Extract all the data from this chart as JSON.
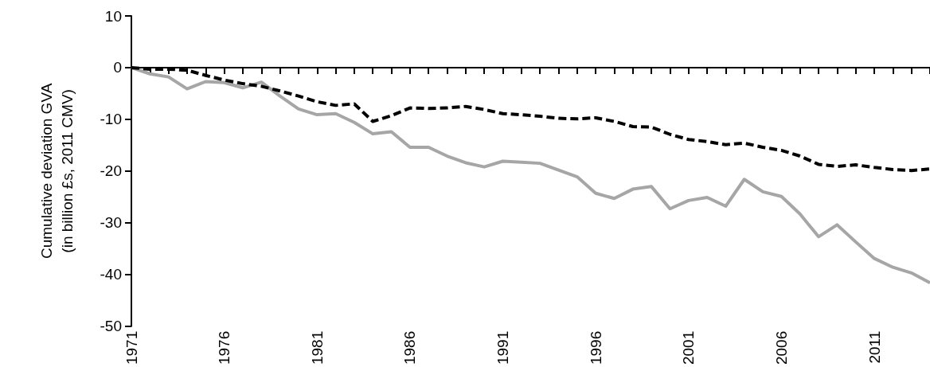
{
  "chart_data": {
    "type": "line",
    "ylabel": "Cumulative deviation GVA\n(in billion £s, 2011 CMV)",
    "categories": [
      "1971",
      null,
      null,
      null,
      null,
      "1976",
      null,
      null,
      null,
      null,
      "1981",
      null,
      null,
      null,
      null,
      "1986",
      null,
      null,
      null,
      null,
      "1991",
      null,
      null,
      null,
      null,
      "1996",
      null,
      null,
      null,
      null,
      "2001",
      null,
      null,
      null,
      null,
      "2006",
      null,
      null,
      null,
      null,
      "2011",
      null,
      null,
      null
    ],
    "series": [
      {
        "color": "#a6a6a6",
        "line_style": "solid",
        "values": [
          0,
          -1.2,
          -1.8,
          -4.1,
          -2.7,
          -2.9,
          -3.9,
          -2.8,
          -5.5,
          -8.0,
          -9.1,
          -8.9,
          -10.6,
          -12.8,
          -12.4,
          -15.4,
          -15.4,
          -17.1,
          -18.4,
          -19.2,
          -18.1,
          -18.3,
          -18.5,
          -19.8,
          -21.1,
          -24.3,
          -25.3,
          -23.5,
          -23.0,
          -27.3,
          -25.7,
          -25.1,
          -26.8,
          -21.6,
          -24.0,
          -24.9,
          -28.3,
          -32.7,
          -30.4,
          -33.7,
          -36.9,
          -38.6,
          -39.7,
          -41.6
        ]
      },
      {
        "color": "#000000",
        "line_style": "dashed",
        "values": [
          0,
          -0.3,
          -0.3,
          -0.5,
          -1.5,
          -2.4,
          -3.1,
          -3.6,
          -4.5,
          -5.5,
          -6.6,
          -7.3,
          -7.0,
          -10.4,
          -9.3,
          -7.8,
          -7.9,
          -7.8,
          -7.5,
          -8.1,
          -8.9,
          -9.1,
          -9.4,
          -9.8,
          -9.9,
          -9.7,
          -10.4,
          -11.4,
          -11.5,
          -12.9,
          -13.9,
          -14.3,
          -14.9,
          -14.6,
          -15.4,
          -16.0,
          -17.1,
          -18.7,
          -19.1,
          -18.8,
          -19.3,
          -19.7,
          -19.9,
          -19.6
        ]
      }
    ],
    "ylim": [
      -50,
      10
    ],
    "yticks": [
      -50,
      -40,
      -30,
      -20,
      -10,
      0,
      10
    ],
    "marker": "none"
  }
}
